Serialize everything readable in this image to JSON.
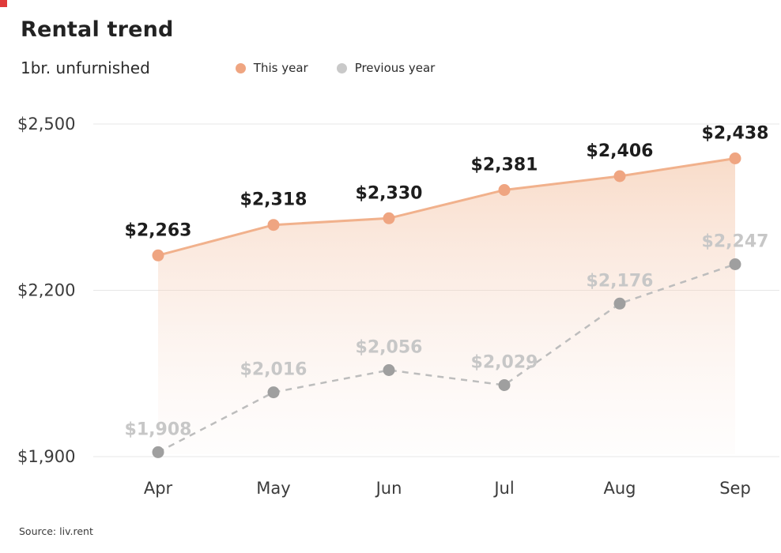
{
  "accent": {
    "corner_mark_color": "#e03a3a"
  },
  "header": {
    "title": "Rental trend",
    "subtitle": "1br. unfurnished"
  },
  "legend": [
    {
      "label": "This year",
      "color": "#efa581"
    },
    {
      "label": "Previous year",
      "color": "#c9c9c9"
    }
  ],
  "footer": {
    "source": "Source: liv.rent"
  },
  "chart_data": {
    "type": "line",
    "title": "Rental trend",
    "subtitle": "1br. unfurnished",
    "source": "Source: liv.rent",
    "categories": [
      "Apr",
      "May",
      "Jun",
      "Jul",
      "Aug",
      "Sep"
    ],
    "series": [
      {
        "name": "This year",
        "values": [
          2263,
          2318,
          2330,
          2381,
          2406,
          2438
        ],
        "labels": [
          "$2,263",
          "$2,318",
          "$2,330",
          "$2,381",
          "$2,406",
          "$2,438"
        ],
        "color": "#f1b18c",
        "point_color": "#efa581",
        "label_color": "#1d1d1d",
        "style": "solid",
        "area": true,
        "area_top_color": "#f3bf9d",
        "area_bottom_color": "#f8e2da"
      },
      {
        "name": "Previous year",
        "values": [
          1908,
          2016,
          2056,
          2029,
          2176,
          2247
        ],
        "labels": [
          "$1,908",
          "$2,016",
          "$2,056",
          "$2,029",
          "$2,176",
          "$2,247"
        ],
        "color": "#bdbdbd",
        "point_color": "#9f9f9f",
        "label_color": "#c7c7c7",
        "style": "dashed",
        "area": false
      }
    ],
    "y_ticks": [
      {
        "label": "$2,500",
        "value": 2500
      },
      {
        "label": "$2,200",
        "value": 2200
      },
      {
        "label": "$1,900",
        "value": 1900
      }
    ],
    "ylim": [
      1900,
      2500
    ],
    "grid": "horizontal",
    "legend_position": "top",
    "grid_color": "#e7e7e7",
    "axis_text_color": "#3b3b3b"
  }
}
